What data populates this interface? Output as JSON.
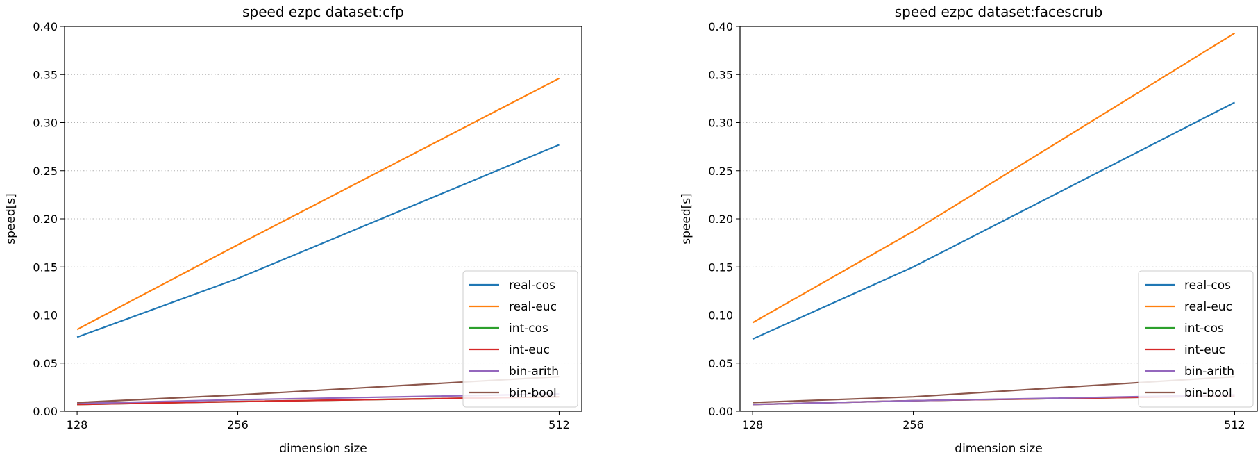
{
  "chart_data": [
    {
      "type": "line",
      "title": "speed ezpc dataset:cfp",
      "xlabel": "dimension size",
      "ylabel": "speed[s]",
      "x": [
        128,
        256,
        512
      ],
      "xticks": [
        "128",
        "256",
        "512"
      ],
      "xlim": [
        118,
        530
      ],
      "ylim": [
        0,
        0.4
      ],
      "yticks": [
        "0.00",
        "0.05",
        "0.10",
        "0.15",
        "0.20",
        "0.25",
        "0.30",
        "0.35",
        "0.40"
      ],
      "grid": "horizontal-dotted",
      "legend_position": "lower-right",
      "series": [
        {
          "name": "real-cos",
          "color": "#1f77b4",
          "values": [
            0.077,
            0.138,
            0.277
          ]
        },
        {
          "name": "real-euc",
          "color": "#ff7f0e",
          "values": [
            0.085,
            0.173,
            0.346
          ]
        },
        {
          "name": "int-cos",
          "color": "#2ca02c",
          "values": [
            0.007,
            0.01,
            0.015
          ]
        },
        {
          "name": "int-euc",
          "color": "#d62728",
          "values": [
            0.007,
            0.01,
            0.015
          ]
        },
        {
          "name": "bin-arith",
          "color": "#9467bd",
          "values": [
            0.008,
            0.012,
            0.018
          ]
        },
        {
          "name": "bin-bool",
          "color": "#8c564b",
          "values": [
            0.009,
            0.017,
            0.036
          ]
        }
      ]
    },
    {
      "type": "line",
      "title": "speed ezpc dataset:facescrub",
      "xlabel": "dimension size",
      "ylabel": "speed[s]",
      "x": [
        128,
        256,
        512
      ],
      "xticks": [
        "128",
        "256",
        "512"
      ],
      "xlim": [
        118,
        530
      ],
      "ylim": [
        0,
        0.4
      ],
      "yticks": [
        "0.00",
        "0.05",
        "0.10",
        "0.15",
        "0.20",
        "0.25",
        "0.30",
        "0.35",
        "0.40"
      ],
      "grid": "horizontal-dotted",
      "legend_position": "lower-right",
      "series": [
        {
          "name": "real-cos",
          "color": "#1f77b4",
          "values": [
            0.075,
            0.15,
            0.321
          ]
        },
        {
          "name": "real-euc",
          "color": "#ff7f0e",
          "values": [
            0.092,
            0.187,
            0.393
          ]
        },
        {
          "name": "int-cos",
          "color": "#2ca02c",
          "values": [
            0.007,
            0.011,
            0.016
          ]
        },
        {
          "name": "int-euc",
          "color": "#d62728",
          "values": [
            0.007,
            0.011,
            0.016
          ]
        },
        {
          "name": "bin-arith",
          "color": "#9467bd",
          "values": [
            0.007,
            0.011,
            0.017
          ]
        },
        {
          "name": "bin-bool",
          "color": "#8c564b",
          "values": [
            0.009,
            0.015,
            0.036
          ]
        }
      ]
    }
  ]
}
